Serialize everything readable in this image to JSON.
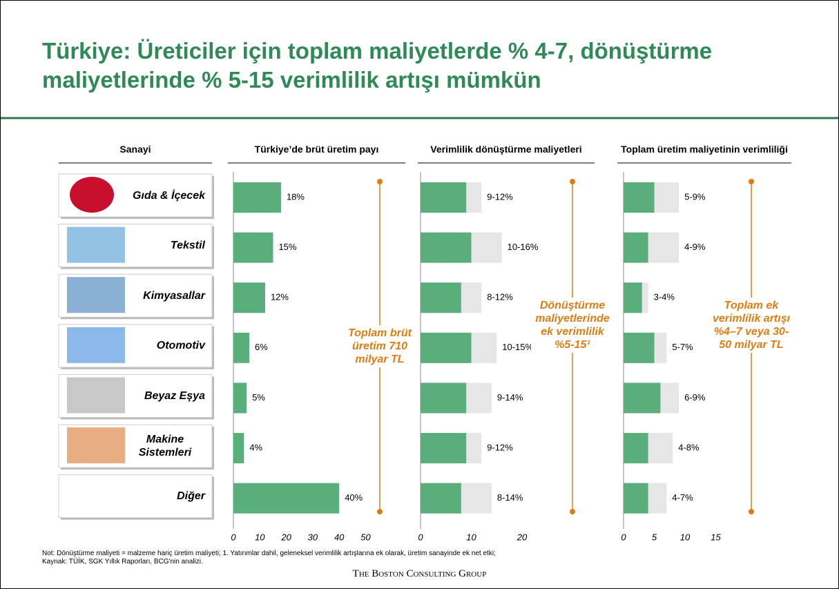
{
  "title": "Türkiye: Üreticiler için toplam maliyetlerde % 4-7, dönüştürme maliyetlerinde % 5-15 verimlilik artışı mümkün",
  "industry_header": "Sanayi",
  "chart_data": [
    {
      "type": "bar",
      "title": "Türkiye’de brüt üretim payı",
      "categories": [
        "Gıda & İçecek",
        "Tekstil",
        "Kimyasallar",
        "Otomotiv",
        "Beyaz Eşya",
        "Makine Sistemleri",
        "Diğer"
      ],
      "values": [
        18,
        15,
        12,
        6,
        5,
        4,
        40
      ],
      "value_labels": [
        "18%",
        "15%",
        "12%",
        "6%",
        "5%",
        "4%",
        "40%"
      ],
      "color": "#5aae7c",
      "xlim": [
        0,
        50
      ],
      "xticks": [
        0,
        10,
        20,
        30,
        40,
        50
      ],
      "annotation": "Toplam brüt üretim 710 milyar TL"
    },
    {
      "type": "range_bar",
      "title": "Verimlilik dönüştürme maliyetleri",
      "series": [
        {
          "color": "#5aae7c",
          "values": [
            9,
            10,
            8,
            10,
            9,
            9,
            8
          ]
        },
        {
          "color": "#e6e6e6",
          "values": [
            12,
            16,
            12,
            15,
            14,
            12,
            14
          ]
        }
      ],
      "value_labels": [
        "9-12%",
        "10-16%",
        "8-12%",
        "10-15%",
        "9-14%",
        "9-12%",
        "8-14%"
      ],
      "xlim": [
        0,
        20
      ],
      "xticks": [
        0,
        10,
        20
      ],
      "annotation": "Dönüştürme maliyetlerinde ek verimlilik %5-15¹"
    },
    {
      "type": "range_bar",
      "title": "Toplam üretim maliyetinin verimliliği",
      "series": [
        {
          "color": "#5aae7c",
          "values": [
            5,
            4,
            3,
            5,
            6,
            4,
            4
          ]
        },
        {
          "color": "#e6e6e6",
          "values": [
            9,
            9,
            4,
            7,
            9,
            8,
            7
          ]
        }
      ],
      "value_labels": [
        "5-9%",
        "4-9%",
        "3-4%",
        "5-7%",
        "6-9%",
        "4-8%",
        "4-7%"
      ],
      "xlim": [
        0,
        15
      ],
      "xticks": [
        0,
        5,
        10,
        15
      ],
      "annotation": "Toplam ek verimlilik artışı %4–7 veya 30-50 milyar TL"
    }
  ],
  "footnotes": [
    "Not: Dönüştürme maliyeti = malzeme hariç üretim maliyeti; 1. Yatırımlar dahil, geleneksel verimlilik artışlarına ek olarak, üretim sanayinde ek net etki;",
    "Kaynak: TÜİK, SGK Yıllık Raporları, BCG'nin analizi."
  ],
  "logo": "The Boston Consulting Group"
}
